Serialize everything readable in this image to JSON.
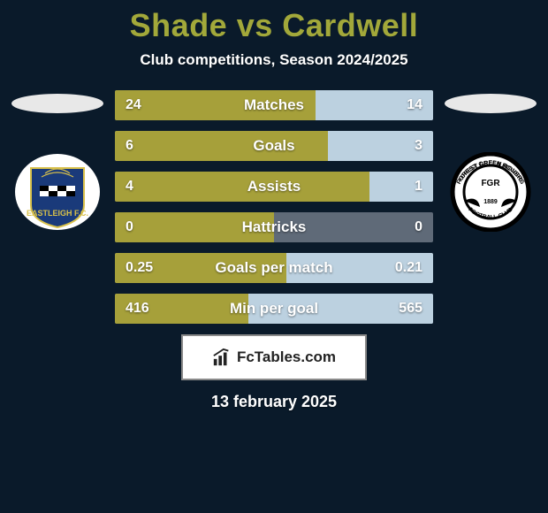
{
  "title": "Shade vs Cardwell",
  "subtitle": "Club competitions, Season 2024/2025",
  "date": "13 february 2025",
  "footer_label": "FcTables.com",
  "colors": {
    "background": "#0a1a2a",
    "title": "#a2a83a",
    "bar_left": "#a6a03a",
    "bar_right": "#bcd1e0",
    "bar_bg": "#5f6a78",
    "text": "#ffffff"
  },
  "clubs": {
    "left": {
      "name": "Eastleigh F.C."
    },
    "right": {
      "name": "Forest Green Rovers"
    }
  },
  "stats": [
    {
      "label": "Matches",
      "left_val": "24",
      "right_val": "14",
      "left_pct": 63,
      "right_pct": 37
    },
    {
      "label": "Goals",
      "left_val": "6",
      "right_val": "3",
      "left_pct": 67,
      "right_pct": 33
    },
    {
      "label": "Assists",
      "left_val": "4",
      "right_val": "1",
      "left_pct": 80,
      "right_pct": 20
    },
    {
      "label": "Hattricks",
      "left_val": "0",
      "right_val": "0",
      "left_pct": 50,
      "right_pct": 0
    },
    {
      "label": "Goals per match",
      "left_val": "0.25",
      "right_val": "0.21",
      "left_pct": 54,
      "right_pct": 46
    },
    {
      "label": "Min per goal",
      "left_val": "416",
      "right_val": "565",
      "left_pct": 42,
      "right_pct": 58,
      "invert": true
    }
  ]
}
